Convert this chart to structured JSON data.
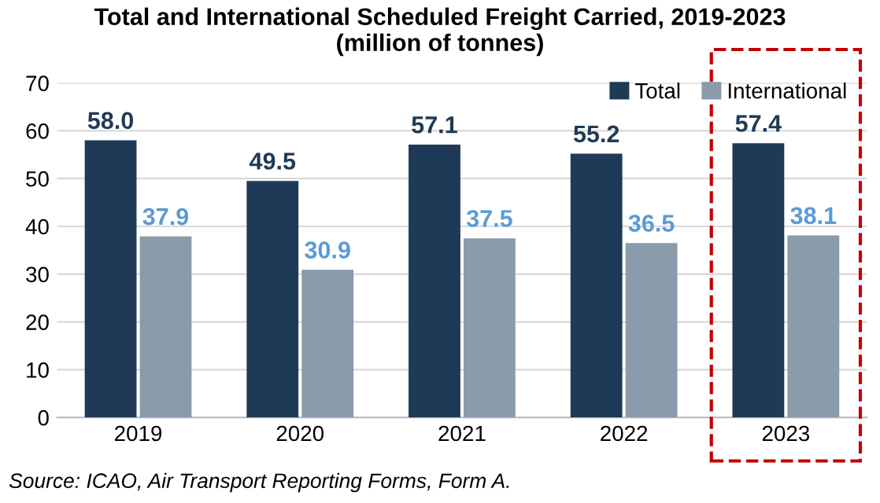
{
  "chart_data": {
    "type": "bar",
    "title": "Total and International Scheduled Freight Carried, 2019-2023\n(million of tonnes)",
    "categories": [
      "2019",
      "2020",
      "2021",
      "2022",
      "2023"
    ],
    "series": [
      {
        "name": "Total",
        "color": "#1f3a56",
        "values": [
          58.0,
          49.5,
          57.1,
          55.2,
          57.4
        ]
      },
      {
        "name": "International",
        "color": "#8a9bab",
        "values": [
          37.9,
          30.9,
          37.5,
          36.5,
          38.1
        ]
      }
    ],
    "ylim": [
      0,
      70
    ],
    "yticks": [
      0,
      10,
      20,
      30,
      40,
      50,
      60,
      70
    ],
    "grid": "y",
    "legend": "top right",
    "value_labels": [
      [
        "58.0",
        "49.5",
        "57.1",
        "55.2",
        "57.4"
      ],
      [
        "37.9",
        "30.9",
        "37.5",
        "36.5",
        "38.1"
      ]
    ],
    "annotations": [
      "Source: ICAO, Air Transport Reporting Forms, Form A."
    ]
  }
}
